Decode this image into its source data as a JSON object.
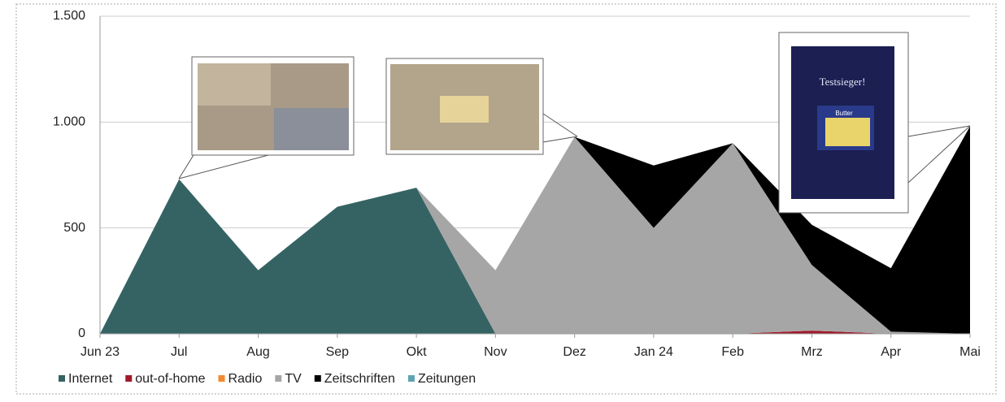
{
  "chart_data": {
    "type": "stacked-area",
    "categories": [
      "Jun 23",
      "Jul",
      "Aug",
      "Sep",
      "Okt",
      "Nov",
      "Dez",
      "Jan 24",
      "Feb",
      "Mrz",
      "Apr",
      "Mai"
    ],
    "series": [
      {
        "name": "Internet",
        "color": "#356363",
        "values": [
          0,
          730,
          300,
          600,
          690,
          0,
          0,
          0,
          0,
          0,
          0,
          0
        ]
      },
      {
        "name": "out-of-home",
        "color": "#a0192a",
        "values": [
          0,
          0,
          0,
          0,
          0,
          0,
          0,
          0,
          0,
          15,
          0,
          0
        ]
      },
      {
        "name": "Radio",
        "color": "#f28a30",
        "values": [
          0,
          0,
          0,
          0,
          0,
          0,
          0,
          0,
          0,
          0,
          0,
          0
        ]
      },
      {
        "name": "TV",
        "color": "#a6a6a6",
        "values": [
          0,
          0,
          0,
          0,
          0,
          300,
          930,
          500,
          900,
          310,
          10,
          0
        ]
      },
      {
        "name": "Zeitschriften",
        "color": "#000000",
        "values": [
          0,
          0,
          0,
          0,
          0,
          0,
          0,
          295,
          0,
          190,
          300,
          980
        ]
      },
      {
        "name": "Zeitungen",
        "color": "#5fa3b3",
        "values": [
          0,
          0,
          0,
          0,
          0,
          0,
          0,
          0,
          0,
          0,
          0,
          0
        ]
      }
    ],
    "ylim": [
      0,
      1500
    ],
    "yticks": [
      0,
      500,
      {
        "value": 1000,
        "label": "1.000"
      },
      {
        "value": 1500,
        "label": "1.500"
      }
    ],
    "grid": true,
    "legend": "bottom",
    "annotations": [
      "Testsieger!",
      "Butter"
    ]
  }
}
